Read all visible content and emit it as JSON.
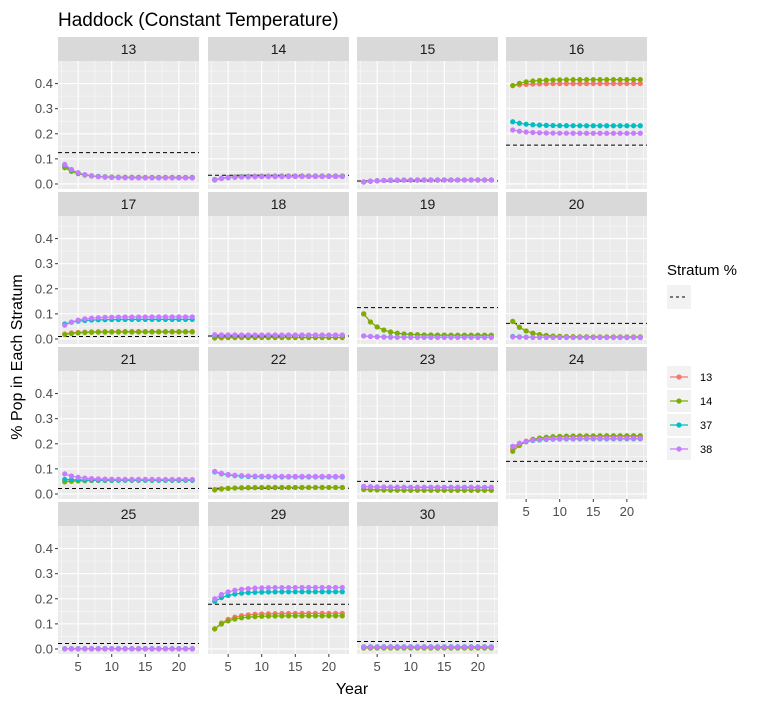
{
  "chart_data": {
    "type": "scatter",
    "title": "Haddock  (Constant Temperature)",
    "xlabel": "Year",
    "ylabel": "% Pop in Each Stratum",
    "xlim": [
      2,
      23
    ],
    "ylim": [
      -0.02,
      0.49
    ],
    "x_ticks": [
      5,
      10,
      15,
      20
    ],
    "y_ticks": [
      0.0,
      0.1,
      0.2,
      0.3,
      0.4
    ],
    "x_tick_labels": [
      "5",
      "10",
      "15",
      "20"
    ],
    "y_tick_labels": [
      "0.0",
      "0.1",
      "0.2",
      "0.3",
      "0.4"
    ],
    "legend": {
      "reference_title": "Stratum %",
      "reference_style": "dashed-line",
      "placement": "right",
      "entries": [
        {
          "name": "13",
          "color": "#F8766D"
        },
        {
          "name": "14",
          "color": "#7CAE00"
        },
        {
          "name": "37",
          "color": "#00BFC4"
        },
        {
          "name": "38",
          "color": "#C77CFF"
        }
      ]
    },
    "facets": [
      {
        "label": "13",
        "stratum_pct": 0.125,
        "series": {
          "13": [
            0.07,
            0.026
          ],
          "14": [
            0.065,
            0.026
          ],
          "37": [
            0.075,
            0.025
          ],
          "38": [
            0.078,
            0.024
          ]
        }
      },
      {
        "label": "14",
        "stratum_pct": 0.035,
        "series": {
          "13": [
            0.018,
            0.03
          ],
          "14": [
            0.016,
            0.032
          ],
          "37": [
            0.018,
            0.03
          ],
          "38": [
            0.017,
            0.03
          ]
        }
      },
      {
        "label": "15",
        "stratum_pct": 0.012,
        "series": {
          "13": [
            0.008,
            0.016
          ],
          "14": [
            0.008,
            0.016
          ],
          "37": [
            0.008,
            0.016
          ],
          "38": [
            0.008,
            0.016
          ]
        }
      },
      {
        "label": "16",
        "stratum_pct": 0.155,
        "series": {
          "13": [
            0.392,
            0.4
          ],
          "14": [
            0.392,
            0.416
          ],
          "37": [
            0.248,
            0.232
          ],
          "38": [
            0.215,
            0.202
          ]
        }
      },
      {
        "label": "17",
        "stratum_pct": 0.01,
        "series": {
          "13": [
            0.02,
            0.03
          ],
          "14": [
            0.018,
            0.028
          ],
          "37": [
            0.06,
            0.078
          ],
          "38": [
            0.055,
            0.088
          ]
        }
      },
      {
        "label": "18",
        "stratum_pct": 0.012,
        "series": {
          "13": [
            0.005,
            0.006
          ],
          "14": [
            0.004,
            0.006
          ],
          "37": [
            0.015,
            0.015
          ],
          "38": [
            0.017,
            0.016
          ]
        }
      },
      {
        "label": "19",
        "stratum_pct": 0.125,
        "series": {
          "13": [
            0.1,
            0.015
          ],
          "14": [
            0.1,
            0.015
          ],
          "37": [
            0.012,
            0.007
          ],
          "38": [
            0.012,
            0.006
          ]
        }
      },
      {
        "label": "20",
        "stratum_pct": 0.062,
        "series": {
          "13": [
            0.07,
            0.008
          ],
          "14": [
            0.07,
            0.008
          ],
          "37": [
            0.01,
            0.006
          ],
          "38": [
            0.008,
            0.006
          ]
        }
      },
      {
        "label": "21",
        "stratum_pct": 0.022,
        "series": {
          "13": [
            0.05,
            0.055
          ],
          "14": [
            0.048,
            0.055
          ],
          "37": [
            0.058,
            0.055
          ],
          "38": [
            0.08,
            0.058
          ]
        }
      },
      {
        "label": "22",
        "stratum_pct": 0.023,
        "series": {
          "13": [
            0.018,
            0.026
          ],
          "14": [
            0.016,
            0.026
          ],
          "37": [
            0.088,
            0.068
          ],
          "38": [
            0.09,
            0.07
          ]
        }
      },
      {
        "label": "23",
        "stratum_pct": 0.05,
        "series": {
          "13": [
            0.02,
            0.015
          ],
          "14": [
            0.018,
            0.015
          ],
          "37": [
            0.03,
            0.026
          ],
          "38": [
            0.03,
            0.027
          ]
        }
      },
      {
        "label": "24",
        "stratum_pct": 0.13,
        "series": {
          "13": [
            0.18,
            0.23
          ],
          "14": [
            0.17,
            0.232
          ],
          "37": [
            0.19,
            0.22
          ],
          "38": [
            0.19,
            0.222
          ]
        }
      },
      {
        "label": "25",
        "stratum_pct": 0.022,
        "series": {
          "13": [
            0.001,
            0.001
          ],
          "14": [
            0.001,
            0.001
          ],
          "37": [
            0.001,
            0.001
          ],
          "38": [
            0.001,
            0.001
          ]
        }
      },
      {
        "label": "29",
        "stratum_pct": 0.178,
        "series": {
          "13": [
            0.08,
            0.142
          ],
          "14": [
            0.08,
            0.132
          ],
          "37": [
            0.19,
            0.228
          ],
          "38": [
            0.2,
            0.245
          ]
        }
      },
      {
        "label": "30",
        "stratum_pct": 0.03,
        "series": {
          "13": [
            0.005,
            0.005
          ],
          "14": [
            0.004,
            0.004
          ],
          "37": [
            0.009,
            0.009
          ],
          "38": [
            0.008,
            0.008
          ]
        }
      }
    ]
  }
}
